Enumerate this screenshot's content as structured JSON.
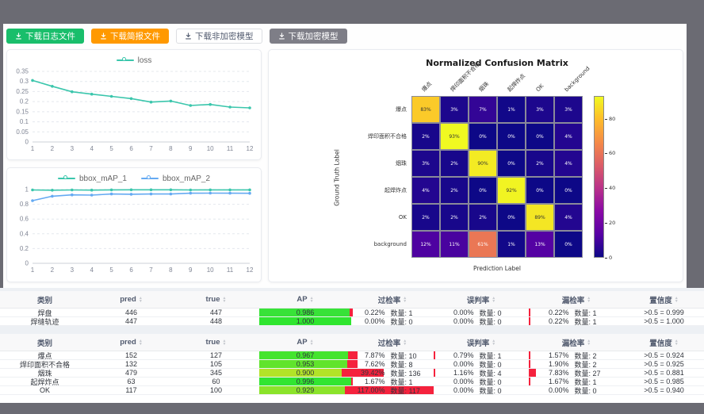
{
  "buttons": [
    {
      "name": "download-log-button",
      "label": "下载日志文件",
      "bg": "#19be6b",
      "fg": "#ffffff",
      "border": "#19be6b"
    },
    {
      "name": "download-report-button",
      "label": "下载简报文件",
      "bg": "#ff9900",
      "fg": "#ffffff",
      "border": "#ff9900"
    },
    {
      "name": "download-plain-model-button",
      "label": "下载非加密模型",
      "bg": "#ffffff",
      "fg": "#515a6e",
      "border": "#dcdee2"
    },
    {
      "name": "download-encrypted-model-button",
      "label": "下载加密模型",
      "bg": "#7e7e87",
      "fg": "#ffffff",
      "border": "#7e7e87"
    }
  ],
  "chart_data": [
    {
      "type": "line",
      "title": "loss",
      "x": [
        1,
        2,
        3,
        4,
        5,
        6,
        7,
        8,
        9,
        10,
        11,
        12
      ],
      "ylim": [
        0,
        0.35
      ],
      "yticks": [
        0,
        0.05,
        0.1,
        0.15,
        0.2,
        0.25,
        0.3,
        0.35
      ],
      "legend_position": "top",
      "grid": "dashed",
      "series": [
        {
          "name": "loss",
          "color": "#3bc6ac",
          "values": [
            0.305,
            0.276,
            0.249,
            0.237,
            0.226,
            0.215,
            0.198,
            0.203,
            0.181,
            0.186,
            0.173,
            0.169
          ]
        }
      ]
    },
    {
      "type": "line",
      "title": "",
      "x": [
        1,
        2,
        3,
        4,
        5,
        6,
        7,
        8,
        9,
        10,
        11,
        12
      ],
      "ylim": [
        0,
        1
      ],
      "yticks": [
        0,
        0.2,
        0.4,
        0.6,
        0.8,
        1
      ],
      "legend_position": "top",
      "grid": "dashed",
      "series": [
        {
          "name": "bbox_mAP_1",
          "color": "#3bc6ac",
          "values": [
            0.995,
            0.991,
            0.995,
            0.992,
            0.996,
            0.997,
            0.997,
            0.997,
            0.995,
            0.996,
            0.996,
            0.996
          ]
        },
        {
          "name": "bbox_mAP_2",
          "color": "#65aaf2",
          "values": [
            0.85,
            0.91,
            0.928,
            0.925,
            0.94,
            0.937,
            0.94,
            0.94,
            0.951,
            0.952,
            0.951,
            0.95
          ]
        }
      ]
    },
    {
      "type": "heatmap",
      "title": "Normalized Confusion Matrix",
      "xlabel": "Prediction Label",
      "ylabel": "Ground Truth Label",
      "categories": [
        "爆点",
        "焊印面积不合格",
        "烟珠",
        "起焊炸点",
        "OK",
        "background"
      ],
      "values": [
        [
          83,
          3,
          7,
          1,
          3,
          3
        ],
        [
          2,
          93,
          0,
          0,
          0,
          4
        ],
        [
          3,
          2,
          90,
          0,
          2,
          4
        ],
        [
          4,
          2,
          0,
          92,
          0,
          0
        ],
        [
          2,
          2,
          2,
          0,
          89,
          4
        ],
        [
          12,
          11,
          61,
          1,
          13,
          0
        ]
      ],
      "value_suffix": "%",
      "vmax": 93,
      "colormap": "plasma",
      "colorbar_ticks": [
        0,
        20,
        40,
        60,
        80
      ]
    }
  ],
  "tables": [
    {
      "headers": [
        "类别",
        "pred",
        "true",
        "AP",
        "过检率",
        "误判率",
        "漏检率",
        "置信度"
      ],
      "rows": [
        {
          "label": "焊盘",
          "pred": "446",
          "true": "447",
          "ap": "0.986",
          "ap_val": 0.986,
          "ap_color": "#38e238",
          "over": {
            "pct": "0.22%",
            "val": 0.22,
            "count": "数量: 1"
          },
          "mis": {
            "pct": "0.00%",
            "val": 0,
            "count": "数量: 0"
          },
          "miss": {
            "pct": "0.22%",
            "val": 0.22,
            "count": "数量: 1"
          },
          "conf": ">0.5 = 0.999"
        },
        {
          "label": "焊缝轨迹",
          "pred": "447",
          "true": "448",
          "ap": "1.000",
          "ap_val": 1,
          "ap_color": "#2fe52f",
          "over": {
            "pct": "0.00%",
            "val": 0,
            "count": "数量: 0"
          },
          "mis": {
            "pct": "0.00%",
            "val": 0,
            "count": "数量: 0"
          },
          "miss": {
            "pct": "0.22%",
            "val": 0.22,
            "count": "数量: 1"
          },
          "conf": ">0.5 = 1.000"
        }
      ]
    },
    {
      "headers": [
        "类别",
        "pred",
        "true",
        "AP",
        "过检率",
        "误判率",
        "漏检率",
        "置信度"
      ],
      "rows": [
        {
          "label": "爆点",
          "pred": "152",
          "true": "127",
          "ap": "0.967",
          "ap_val": 0.967,
          "ap_color": "#44e42e",
          "over": {
            "pct": "7.87%",
            "val": 7.87,
            "count": "数量: 10"
          },
          "mis": {
            "pct": "0.79%",
            "val": 0.79,
            "count": "数量: 1"
          },
          "miss": {
            "pct": "1.57%",
            "val": 1.57,
            "count": "数量: 2"
          },
          "conf": ">0.5 = 0.924"
        },
        {
          "label": "焊印面积不合格",
          "pred": "132",
          "true": "105",
          "ap": "0.953",
          "ap_val": 0.953,
          "ap_color": "#60e42c",
          "over": {
            "pct": "7.62%",
            "val": 7.62,
            "count": "数量: 8"
          },
          "mis": {
            "pct": "0.00%",
            "val": 0,
            "count": "数量: 0"
          },
          "miss": {
            "pct": "1.90%",
            "val": 1.9,
            "count": "数量: 2"
          },
          "conf": ">0.5 = 0.925"
        },
        {
          "label": "烟珠",
          "pred": "479",
          "true": "345",
          "ap": "0.900",
          "ap_val": 0.9,
          "ap_color": "#b2e328",
          "over": {
            "pct": "39.42%",
            "val": 39.42,
            "count": "数量: 136"
          },
          "mis": {
            "pct": "1.16%",
            "val": 1.16,
            "count": "数量: 4"
          },
          "miss": {
            "pct": "7.83%",
            "val": 7.83,
            "count": "数量: 27"
          },
          "conf": ">0.5 = 0.881"
        },
        {
          "label": "起焊炸点",
          "pred": "63",
          "true": "60",
          "ap": "0.996",
          "ap_val": 0.996,
          "ap_color": "#31e531",
          "over": {
            "pct": "1.67%",
            "val": 1.67,
            "count": "数量: 1"
          },
          "mis": {
            "pct": "0.00%",
            "val": 0,
            "count": "数量: 0"
          },
          "miss": {
            "pct": "1.67%",
            "val": 1.67,
            "count": "数量: 1"
          },
          "conf": ">0.5 = 0.985"
        },
        {
          "label": "OK",
          "pred": "117",
          "true": "100",
          "ap": "0.929",
          "ap_val": 0.929,
          "ap_color": "#8be32a",
          "over": {
            "pct": "117.00%",
            "val": 117,
            "count": "数量: 117"
          },
          "mis": {
            "pct": "0.00%",
            "val": 0,
            "count": "数量: 0"
          },
          "miss": {
            "pct": "0.00%",
            "val": 0,
            "count": "数量: 0"
          },
          "conf": ">0.5 = 0.940"
        }
      ]
    }
  ],
  "colors": {
    "frame": "#6b6b73",
    "bar_red": "#f5223d",
    "header_bg": "#f8f8f9",
    "text": "#515a6e",
    "teal": "#3bc6ac",
    "blue": "#65aaf2"
  }
}
